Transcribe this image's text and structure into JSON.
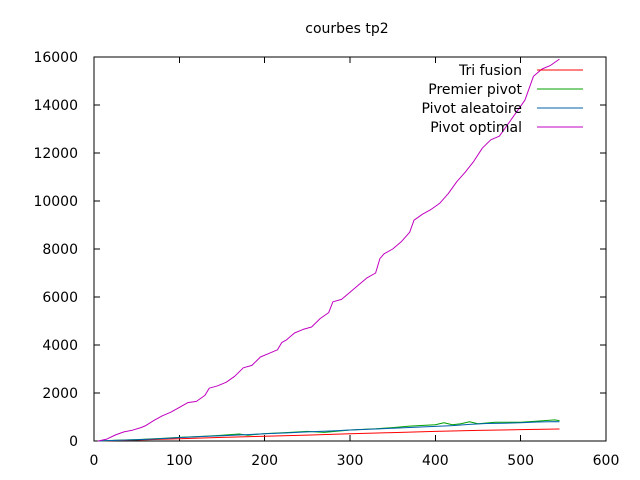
{
  "chart_data": {
    "type": "line",
    "title": "courbes tp2",
    "xlabel": "",
    "ylabel": "",
    "xlim": [
      0,
      600
    ],
    "ylim": [
      0,
      16000
    ],
    "xticks": [
      0,
      100,
      200,
      300,
      400,
      500,
      600
    ],
    "yticks": [
      0,
      2000,
      4000,
      6000,
      8000,
      10000,
      12000,
      14000,
      16000
    ],
    "grid": false,
    "legend_position": "top-right",
    "series": [
      {
        "name": "Tri fusion",
        "color": "#ff0000",
        "points": [
          [
            5,
            0
          ],
          [
            50,
            40
          ],
          [
            100,
            90
          ],
          [
            150,
            150
          ],
          [
            200,
            200
          ],
          [
            250,
            245
          ],
          [
            300,
            300
          ],
          [
            350,
            350
          ],
          [
            400,
            400
          ],
          [
            450,
            440
          ],
          [
            500,
            475
          ],
          [
            545,
            500
          ]
        ]
      },
      {
        "name": "Premier pivot",
        "color": "#00a000",
        "points": [
          [
            5,
            0
          ],
          [
            25,
            30
          ],
          [
            50,
            60
          ],
          [
            80,
            110
          ],
          [
            100,
            150
          ],
          [
            130,
            200
          ],
          [
            150,
            240
          ],
          [
            170,
            290
          ],
          [
            180,
            240
          ],
          [
            200,
            310
          ],
          [
            230,
            360
          ],
          [
            250,
            400
          ],
          [
            270,
            360
          ],
          [
            300,
            460
          ],
          [
            330,
            510
          ],
          [
            350,
            560
          ],
          [
            370,
            620
          ],
          [
            400,
            680
          ],
          [
            410,
            760
          ],
          [
            420,
            680
          ],
          [
            430,
            720
          ],
          [
            440,
            800
          ],
          [
            450,
            720
          ],
          [
            470,
            780
          ],
          [
            500,
            780
          ],
          [
            520,
            830
          ],
          [
            540,
            880
          ],
          [
            545,
            850
          ]
        ]
      },
      {
        "name": "Pivot aleatoire",
        "color": "#0060ad",
        "points": [
          [
            5,
            0
          ],
          [
            25,
            25
          ],
          [
            50,
            55
          ],
          [
            80,
            100
          ],
          [
            100,
            140
          ],
          [
            130,
            190
          ],
          [
            150,
            220
          ],
          [
            200,
            300
          ],
          [
            230,
            340
          ],
          [
            250,
            380
          ],
          [
            280,
            420
          ],
          [
            300,
            460
          ],
          [
            330,
            500
          ],
          [
            350,
            530
          ],
          [
            380,
            580
          ],
          [
            400,
            610
          ],
          [
            420,
            640
          ],
          [
            440,
            690
          ],
          [
            460,
            730
          ],
          [
            480,
            740
          ],
          [
            500,
            760
          ],
          [
            520,
            790
          ],
          [
            540,
            810
          ],
          [
            545,
            800
          ]
        ]
      },
      {
        "name": "Pivot optimal",
        "color": "#c000c0",
        "points": [
          [
            5,
            0
          ],
          [
            15,
            80
          ],
          [
            25,
            250
          ],
          [
            35,
            380
          ],
          [
            45,
            450
          ],
          [
            55,
            560
          ],
          [
            60,
            630
          ],
          [
            70,
            850
          ],
          [
            80,
            1050
          ],
          [
            90,
            1200
          ],
          [
            100,
            1400
          ],
          [
            110,
            1600
          ],
          [
            120,
            1650
          ],
          [
            130,
            1900
          ],
          [
            135,
            2200
          ],
          [
            145,
            2300
          ],
          [
            155,
            2450
          ],
          [
            165,
            2700
          ],
          [
            175,
            3050
          ],
          [
            185,
            3150
          ],
          [
            195,
            3500
          ],
          [
            205,
            3650
          ],
          [
            215,
            3800
          ],
          [
            220,
            4100
          ],
          [
            225,
            4200
          ],
          [
            235,
            4500
          ],
          [
            245,
            4650
          ],
          [
            255,
            4750
          ],
          [
            265,
            5100
          ],
          [
            275,
            5350
          ],
          [
            280,
            5800
          ],
          [
            290,
            5900
          ],
          [
            300,
            6200
          ],
          [
            310,
            6500
          ],
          [
            320,
            6800
          ],
          [
            330,
            7000
          ],
          [
            335,
            7600
          ],
          [
            340,
            7800
          ],
          [
            350,
            8000
          ],
          [
            360,
            8300
          ],
          [
            370,
            8700
          ],
          [
            375,
            9200
          ],
          [
            385,
            9450
          ],
          [
            395,
            9650
          ],
          [
            405,
            9900
          ],
          [
            415,
            10300
          ],
          [
            425,
            10800
          ],
          [
            435,
            11200
          ],
          [
            445,
            11650
          ],
          [
            455,
            12200
          ],
          [
            465,
            12550
          ],
          [
            475,
            12700
          ],
          [
            485,
            13200
          ],
          [
            495,
            13700
          ],
          [
            505,
            14200
          ],
          [
            515,
            15200
          ],
          [
            525,
            15500
          ],
          [
            535,
            15650
          ],
          [
            545,
            15900
          ]
        ]
      }
    ]
  }
}
